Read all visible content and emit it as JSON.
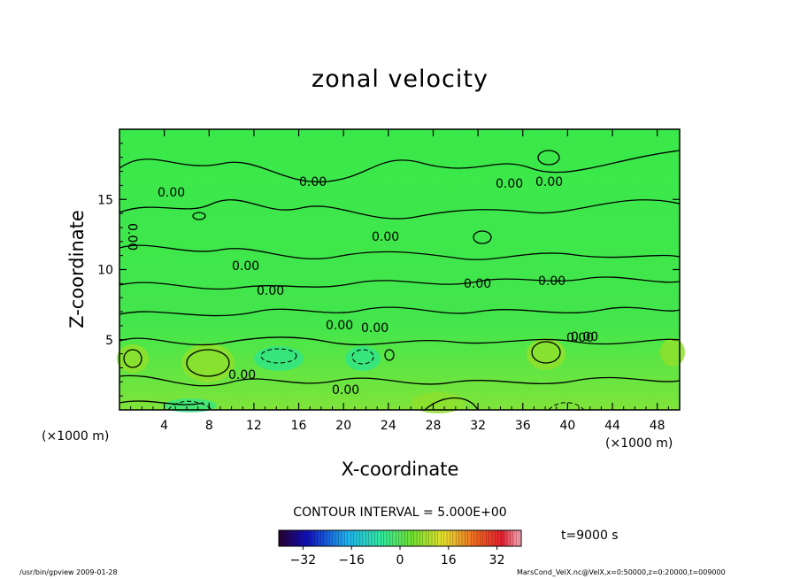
{
  "chart_data": {
    "type": "contour",
    "title": "zonal velocity",
    "xlabel": "X-coordinate",
    "ylabel": "Z-coordinate",
    "x_unit": "(×1000 m)",
    "y_unit": "(×1000 m)",
    "x_ticks": [
      4,
      8,
      12,
      16,
      20,
      24,
      28,
      32,
      36,
      40,
      44,
      48
    ],
    "y_ticks": [
      5,
      10,
      15
    ],
    "xlim": [
      0,
      50
    ],
    "ylim": [
      0,
      20
    ],
    "contour_interval_label": "CONTOUR INTERVAL = 5.000E+00",
    "time_label": "t=9000 s",
    "contour_labels": [
      "0.00",
      "0.00",
      "0.00",
      "0.00",
      "0.00",
      "0.00",
      "0.00",
      "0.00",
      "0.00",
      "0.00",
      "0.00",
      "0.00",
      "0.00",
      "0.00",
      "0.00",
      "0.00"
    ],
    "colorbar": {
      "ticks": [
        -32,
        -16,
        0,
        16,
        32
      ],
      "tick_labels": [
        "−32",
        "−16",
        "0",
        "16",
        "32"
      ],
      "range": [
        -40,
        40
      ]
    },
    "footer_left": "/usr/bin/gpview   2009-01-28",
    "footer_right": "MarsCond_VelX.nc@VelX,x=0:50000,z=0:20000,t=009000"
  }
}
